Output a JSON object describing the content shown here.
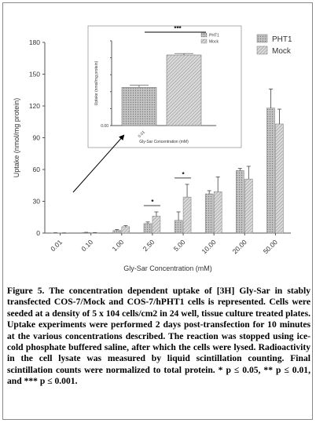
{
  "chart_data": [
    {
      "type": "bar",
      "categories": [
        "0.01",
        "0.10",
        "1.00",
        "2.50",
        "5.00",
        "10.00",
        "20.00",
        "50.00"
      ],
      "xlabel": "Gly-Sar Concentration (mM)",
      "ylabel": "Uptake (nmol/mg protein)",
      "ylim": [
        0,
        180
      ],
      "yticks": [
        "0",
        "30",
        "60",
        "90",
        "120",
        "150",
        "180"
      ],
      "legend": "top-right",
      "series": [
        {
          "name": "PHT1",
          "values": [
            0.2,
            0.5,
            2.5,
            9,
            12,
            37,
            59,
            118
          ],
          "errors": [
            0.1,
            0.2,
            0.8,
            1.5,
            8,
            3,
            2,
            18
          ],
          "color": "#bdbdbd",
          "pattern": "dots"
        },
        {
          "name": "Mock",
          "values": [
            0.1,
            0.3,
            6,
            16,
            34,
            39,
            51,
            103
          ],
          "errors": [
            0.1,
            0.2,
            1,
            4,
            12,
            14,
            12,
            14
          ],
          "color": "#d4d4d4",
          "pattern": "hatch"
        }
      ],
      "significance": [
        {
          "category": "2.50",
          "label": "*"
        },
        {
          "category": "5.00",
          "label": "*"
        }
      ]
    },
    {
      "type": "bar",
      "categories": [
        "PHT1",
        "Mock"
      ],
      "values": [
        27,
        50
      ],
      "errors": [
        1.5,
        1
      ],
      "xlabel": "Gly-Sar Concentration (mM)",
      "ylabel": "Uptake (nmol/mg protein)",
      "ylim": [
        0,
        60
      ],
      "yticks": [
        "0.00",
        "",
        "",
        "",
        "",
        ""
      ],
      "category_label": "0.01",
      "significance": [
        {
          "categories": [
            "PHT1",
            "Mock"
          ],
          "label": "***"
        }
      ]
    }
  ],
  "caption": {
    "figure_label": "Figure 5.",
    "text": " The concentration dependent uptake of [3H] Gly-Sar in stably transfected COS-7/Mock and COS-7/hPHT1 cells is represented. Cells were seeded at a density of 5 x 104 cells/cm2 in 24 well, tissue culture treated plates. Uptake experiments were performed 2 days post-transfection for 10 minutes at the various concentrations described. The reaction was stopped using ice-cold phosphate buffered saline, after which the cells were lysed. Radioactivity in the cell lysate was measured by liquid scintillation counting. Final scintillation counts were normalized to total protein. * p ≤ 0.05, ** p ≤ 0.01, and *** p ≤ 0.001."
  }
}
